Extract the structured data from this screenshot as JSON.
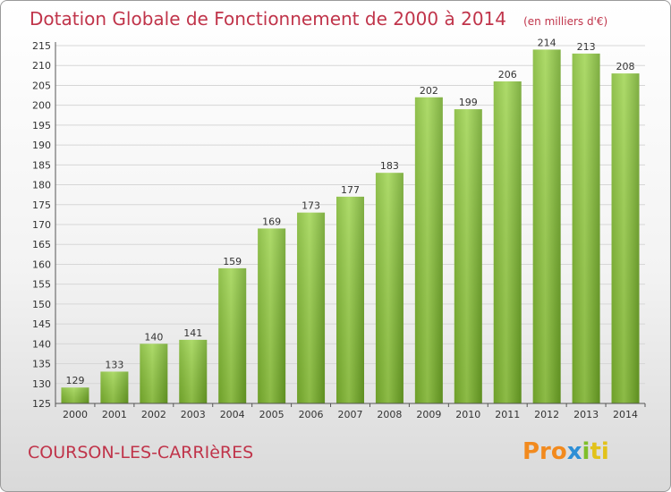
{
  "chart_data": {
    "type": "bar",
    "title": "Dotation Globale de Fonctionnement de 2000 à 2014",
    "subtitle": "(en milliers d'€)",
    "categories": [
      "2000",
      "2001",
      "2002",
      "2003",
      "2004",
      "2005",
      "2006",
      "2007",
      "2008",
      "2009",
      "2010",
      "2011",
      "2012",
      "2013",
      "2014"
    ],
    "values": [
      129,
      133,
      140,
      141,
      159,
      169,
      173,
      177,
      183,
      202,
      199,
      206,
      214,
      213,
      208
    ],
    "ylim": [
      125,
      215
    ],
    "yticks": [
      125,
      130,
      135,
      140,
      145,
      150,
      155,
      160,
      165,
      170,
      175,
      180,
      185,
      190,
      195,
      200,
      205,
      210,
      215
    ],
    "grid": true,
    "bar_color": "#8cc63f"
  },
  "footer": {
    "commune": "COURSON-LES-CARRIèRES",
    "logo": {
      "p1": "Pro",
      "p2": "x",
      "p3": "i",
      "p4": "ti"
    }
  }
}
